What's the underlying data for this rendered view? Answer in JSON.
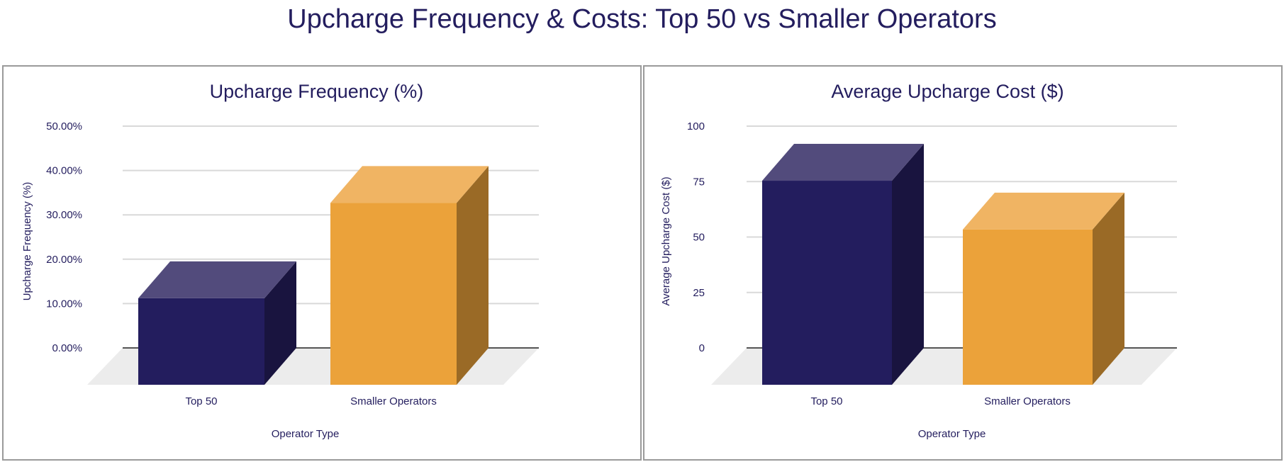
{
  "title": "Upcharge Frequency & Costs: Top 50 vs Smaller Operators",
  "colors": {
    "top50": {
      "front": "#231d5e",
      "top": "#524b7c",
      "side": "#19143f"
    },
    "smaller": {
      "front": "#eba23a",
      "top": "#f0b463",
      "side": "#9a6a26"
    },
    "floor": "#ececec",
    "grid": "#d9d9d9",
    "baseline": "#555555"
  },
  "chart_data": [
    {
      "type": "bar",
      "title": "Upcharge Frequency (%)",
      "xlabel": "Operator Type",
      "ylabel": "Upcharge Frequency (%)",
      "categories": [
        "Top 50",
        "Smaller Operators"
      ],
      "values": [
        19.5,
        41.0
      ],
      "ylim": [
        0,
        50
      ],
      "yticks": [
        0,
        10,
        20,
        30,
        40,
        50
      ],
      "ytick_labels": [
        "0.00%",
        "10.00%",
        "20.00%",
        "30.00%",
        "40.00%",
        "50.00%"
      ],
      "grid": true,
      "style": "3d"
    },
    {
      "type": "bar",
      "title": "Average Upcharge Cost ($)",
      "xlabel": "Operator Type",
      "ylabel": "Average Upcharge Cost ($)",
      "categories": [
        "Top 50",
        "Smaller Operators"
      ],
      "values": [
        92,
        70
      ],
      "ylim": [
        0,
        100
      ],
      "yticks": [
        0,
        25,
        50,
        75,
        100
      ],
      "ytick_labels": [
        "0",
        "25",
        "50",
        "75",
        "100"
      ],
      "grid": true,
      "style": "3d"
    }
  ]
}
